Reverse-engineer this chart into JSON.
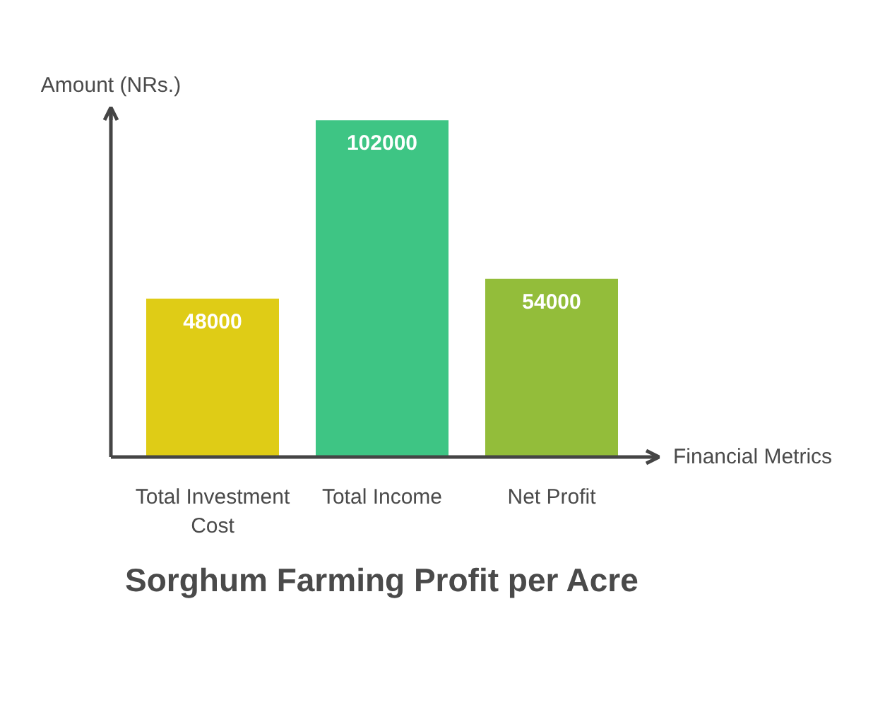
{
  "chart_data": {
    "type": "bar",
    "title": "Sorghum Farming Profit per Acre",
    "xlabel": "Financial Metrics",
    "ylabel": "Amount (NRs.)",
    "categories": [
      "Total Investment Cost",
      "Total Income",
      "Net Profit"
    ],
    "values": [
      48000,
      102000,
      54000
    ],
    "colors": [
      "#dfcc16",
      "#3ec584",
      "#93bd3a"
    ],
    "data_labels": true,
    "ylim": [
      0,
      104000
    ],
    "tick_labels": "x"
  }
}
